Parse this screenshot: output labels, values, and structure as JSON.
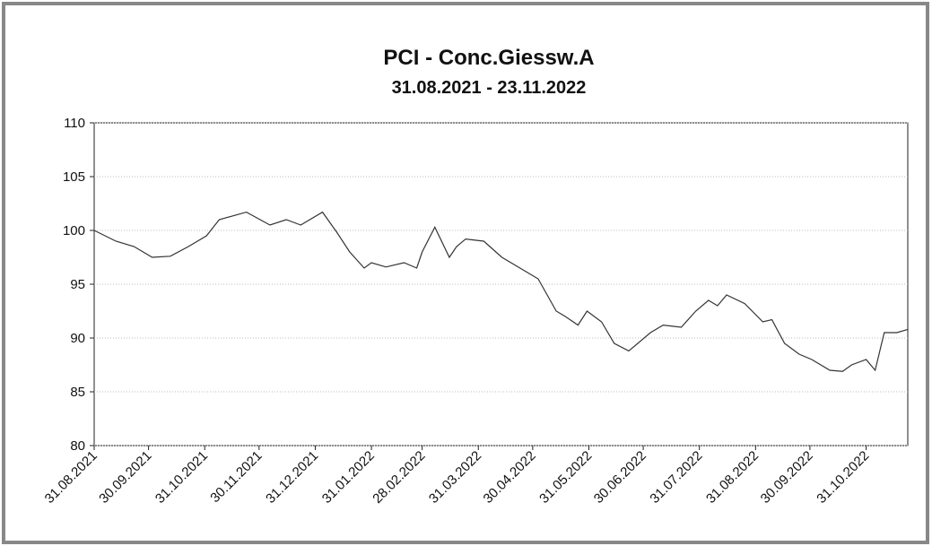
{
  "chart_data": {
    "type": "line",
    "title": "PCI - Conc.Giessw.A",
    "subtitle": "31.08.2021 - 23.11.2022",
    "x": [
      "31.08.2021",
      "12.09.2021",
      "22.09.2021",
      "02.10.2021",
      "12.10.2021",
      "22.10.2021",
      "01.11.2021",
      "08.11.2021",
      "23.11.2021",
      "06.12.2021",
      "15.12.2021",
      "23.12.2021",
      "04.01.2022",
      "12.01.2022",
      "19.01.2022",
      "27.01.2022",
      "31.01.2022",
      "08.02.2022",
      "18.02.2022",
      "25.02.2022",
      "28.02.2022",
      "07.03.2022",
      "15.03.2022",
      "19.03.2022",
      "24.03.2022",
      "03.04.2022",
      "13.04.2022",
      "23.04.2022",
      "03.05.2022",
      "13.05.2022",
      "18.05.2022",
      "25.05.2022",
      "30.05.2022",
      "07.06.2022",
      "14.06.2022",
      "22.06.2022",
      "27.06.2022",
      "04.07.2022",
      "11.07.2022",
      "21.07.2022",
      "29.07.2022",
      "05.08.2022",
      "10.08.2022",
      "15.08.2022",
      "25.08.2022",
      "04.09.2022",
      "09.09.2022",
      "16.09.2022",
      "24.09.2022",
      "01.10.2022",
      "11.10.2022",
      "18.10.2022",
      "23.10.2022",
      "31.10.2022",
      "05.11.2022",
      "10.11.2022",
      "17.11.2022",
      "23.11.2022"
    ],
    "series": [
      {
        "color": "#333333",
        "values": [
          100.0,
          99.0,
          98.5,
          97.5,
          97.6,
          98.5,
          99.5,
          101.0,
          101.7,
          100.5,
          101.0,
          100.5,
          101.7,
          99.8,
          98.0,
          96.5,
          97.0,
          96.6,
          97.0,
          96.5,
          98.0,
          100.3,
          97.5,
          98.5,
          99.2,
          99.0,
          97.5,
          96.5,
          95.5,
          92.5,
          92.0,
          91.2,
          92.5,
          91.5,
          89.5,
          88.8,
          89.5,
          90.5,
          91.2,
          91.0,
          92.5,
          93.5,
          93.0,
          94.0,
          93.2,
          91.5,
          91.7,
          89.5,
          88.5,
          88.0,
          87.0,
          86.9,
          87.5,
          88.0,
          87.0,
          90.5,
          90.5,
          90.8
        ]
      }
    ],
    "xlim": [
      "31.08.2021",
      "23.11.2022"
    ],
    "xticks": [
      "31.08.2021",
      "30.09.2021",
      "31.10.2021",
      "30.11.2021",
      "31.12.2021",
      "31.01.2022",
      "28.02.2022",
      "31.03.2022",
      "30.04.2022",
      "31.05.2022",
      "30.06.2022",
      "31.07.2022",
      "31.08.2022",
      "30.09.2022",
      "31.10.2022"
    ],
    "ylim": [
      80,
      110
    ],
    "yticks": [
      80,
      85,
      90,
      95,
      100,
      105,
      110
    ],
    "grid": true
  }
}
